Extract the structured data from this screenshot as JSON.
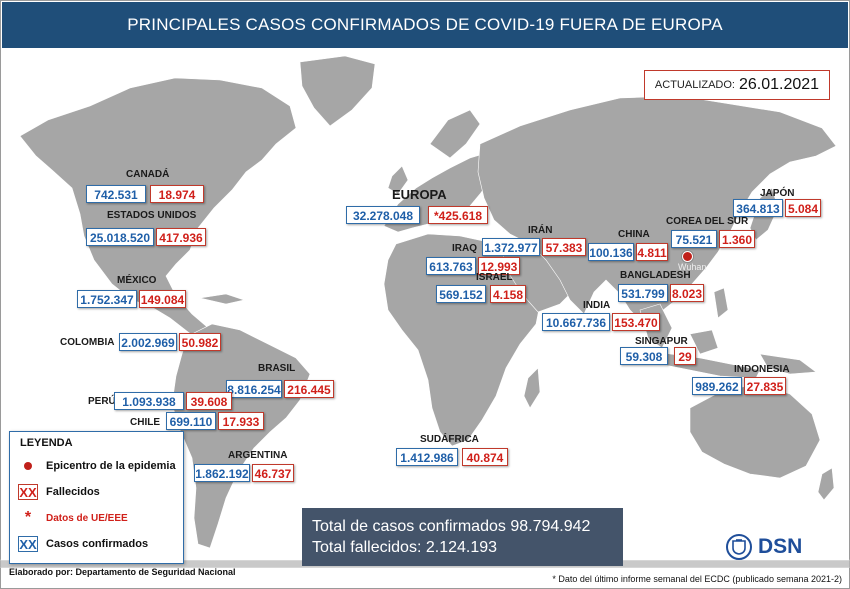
{
  "title": "PRINCIPALES CASOS CONFIRMADOS DE COVID-19 FUERA DE EUROPA",
  "updated": {
    "label": "ACTUALIZADO:",
    "date": "26.01.2021"
  },
  "countries": [
    {
      "id": "canada",
      "name": "CANADÁ",
      "cases": "742.531",
      "deaths": "18.974"
    },
    {
      "id": "estados-unidos",
      "name": "ESTADOS UNIDOS",
      "cases": "25.018.520",
      "deaths": "417.936"
    },
    {
      "id": "mexico",
      "name": "MÉXICO",
      "cases": "1.752.347",
      "deaths": "149.084"
    },
    {
      "id": "colombia",
      "name": "COLOMBIA",
      "cases": "2.002.969",
      "deaths": "50.982"
    },
    {
      "id": "brasil",
      "name": "BRASIL",
      "cases": "8.816.254",
      "deaths": "216.445"
    },
    {
      "id": "peru",
      "name": "PERÚ",
      "cases": "1.093.938",
      "deaths": "39.608"
    },
    {
      "id": "chile",
      "name": "CHILE",
      "cases": "699.110",
      "deaths": "17.933"
    },
    {
      "id": "argentina",
      "name": "ARGENTINA",
      "cases": "1.862.192",
      "deaths": "46.737"
    },
    {
      "id": "europa",
      "name": "EUROPA",
      "cases": "32.278.048",
      "deaths": "*425.618"
    },
    {
      "id": "iran",
      "name": "IRÁN",
      "cases": "1.372.977",
      "deaths": "57.383"
    },
    {
      "id": "iraq",
      "name": "IRAQ",
      "cases": "613.763",
      "deaths": "12.993"
    },
    {
      "id": "israel",
      "name": "ISRAEL",
      "cases": "569.152",
      "deaths": "4.158"
    },
    {
      "id": "china",
      "name": "CHINA",
      "cases": "100.136",
      "deaths": "4.811"
    },
    {
      "id": "corea-del-sur",
      "name": "COREA DEL SUR",
      "cases": "75.521",
      "deaths": "1.360"
    },
    {
      "id": "japon",
      "name": "JAPÓN",
      "cases": "364.813",
      "deaths": "5.084"
    },
    {
      "id": "bangladesh",
      "name": "BANGLADESH",
      "cases": "531.799",
      "deaths": "8.023"
    },
    {
      "id": "india",
      "name": "INDIA",
      "cases": "10.667.736",
      "deaths": "153.470"
    },
    {
      "id": "singapur",
      "name": "SINGAPUR",
      "cases": "59.308",
      "deaths": "29"
    },
    {
      "id": "indonesia",
      "name": "INDONESIA",
      "cases": "989.262",
      "deaths": "27.835"
    },
    {
      "id": "sudafrica",
      "name": "SUDÁFRICA",
      "cases": "1.412.986",
      "deaths": "40.874"
    }
  ],
  "epicenter_label": "Wuhan",
  "legend": {
    "title": "LEYENDA",
    "epicenter": "Epicentro de la epidemia",
    "deaths_symbol": "XX",
    "deaths": "Fallecidos",
    "ue_symbol": "*",
    "ue": "Datos de UE/EEE",
    "cases_symbol": "XX",
    "cases": "Casos confirmados"
  },
  "totals": {
    "cases_label": "Total de casos confirmados",
    "cases": "98.794.942",
    "deaths_label": "Total fallecidos:",
    "deaths": "2.124.193"
  },
  "footer_left": "Elaborado por: Departamento de Seguridad Nacional",
  "footer_right": "* Dato del último informe semanal del ECDC (publicado semana 2021-2)",
  "logo_text": "DSN",
  "colors": {
    "header": "#1f4e79",
    "cases": "#1f5fa8",
    "deaths": "#d0201a",
    "land": "#a6a6a6",
    "totals_bg": "#44546a"
  }
}
